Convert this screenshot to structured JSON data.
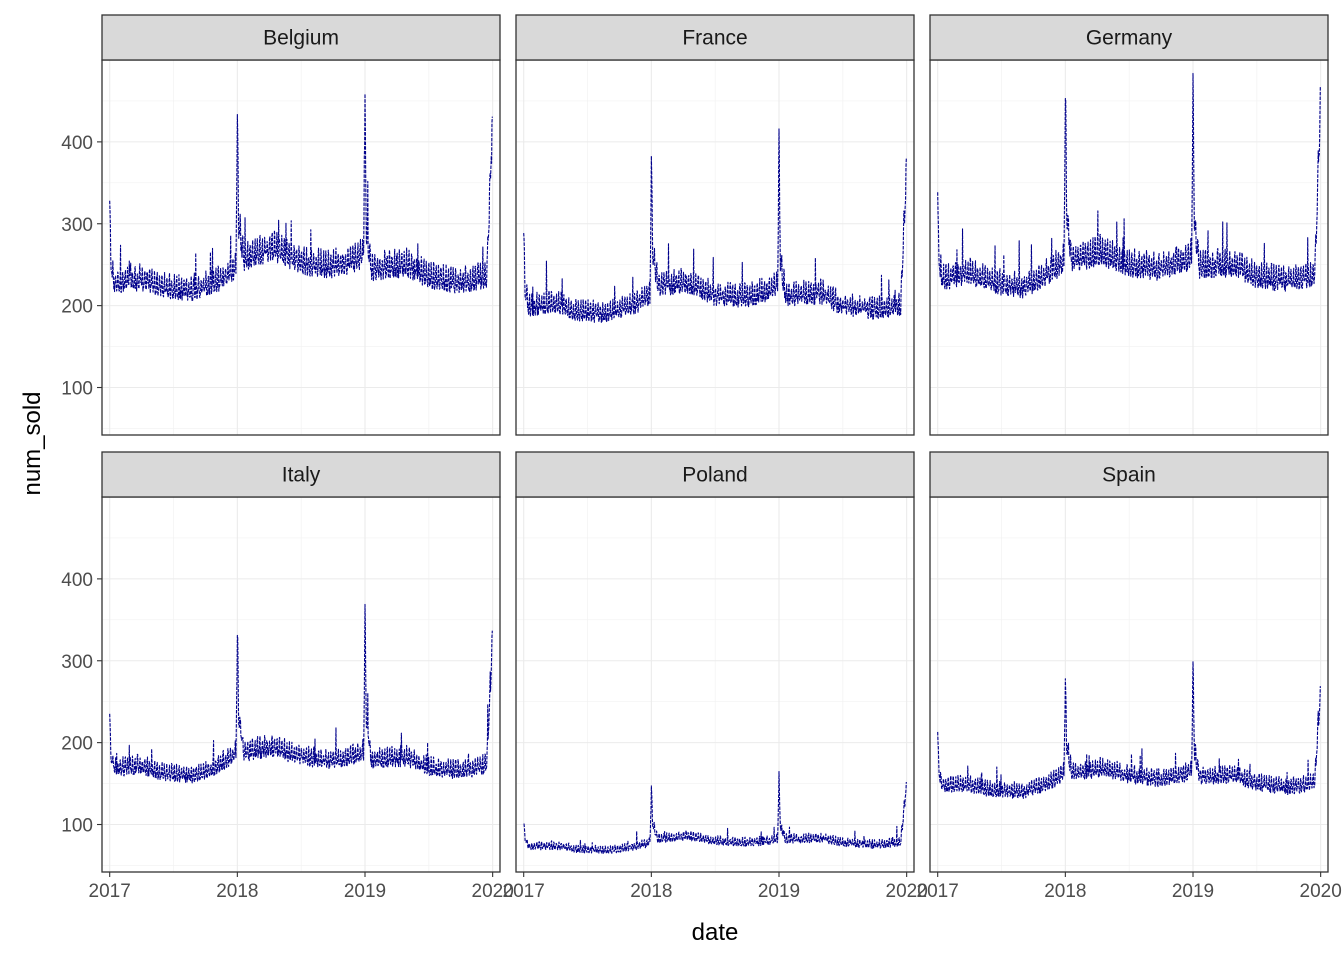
{
  "chart_data": {
    "type": "line",
    "facet_layout": "2 rows x 3 columns, shared axes",
    "xlabel": "date",
    "ylabel": "num_sold",
    "x_ticks": [
      "2017",
      "2018",
      "2019",
      "2020"
    ],
    "y_ticks": [
      100,
      200,
      300,
      400
    ],
    "xlim": [
      "2016-12-10",
      "2020-01-22"
    ],
    "ylim": [
      42,
      500
    ],
    "grid": true,
    "theme": "bw",
    "line_color": "#00008B",
    "line_style": "dashed",
    "strip_fill": "#D9D9D9",
    "panels": [
      {
        "name": "Belgium",
        "anchors": [
          [
            "2017-01-01",
            335
          ],
          [
            "2017-01-04",
            250
          ],
          [
            "2017-01-15",
            225
          ],
          [
            "2017-04-01",
            232
          ],
          [
            "2017-06-01",
            222
          ],
          [
            "2017-09-01",
            218
          ],
          [
            "2017-11-01",
            228
          ],
          [
            "2017-12-15",
            242
          ],
          [
            "2017-12-28",
            250
          ],
          [
            "2018-01-01",
            435
          ],
          [
            "2018-01-05",
            300
          ],
          [
            "2018-01-20",
            258
          ],
          [
            "2018-04-15",
            270
          ],
          [
            "2018-07-01",
            252
          ],
          [
            "2018-10-01",
            248
          ],
          [
            "2018-12-15",
            258
          ],
          [
            "2018-12-28",
            265
          ],
          [
            "2019-01-01",
            440
          ],
          [
            "2019-01-05",
            290
          ],
          [
            "2019-01-20",
            245
          ],
          [
            "2019-05-01",
            250
          ],
          [
            "2019-07-01",
            235
          ],
          [
            "2019-10-01",
            228
          ],
          [
            "2019-12-15",
            235
          ],
          [
            "2019-12-31",
            420
          ]
        ]
      },
      {
        "name": "France",
        "anchors": [
          [
            "2017-01-01",
            293
          ],
          [
            "2017-01-04",
            225
          ],
          [
            "2017-01-15",
            198
          ],
          [
            "2017-04-01",
            203
          ],
          [
            "2017-06-01",
            192
          ],
          [
            "2017-09-01",
            190
          ],
          [
            "2017-11-01",
            200
          ],
          [
            "2017-12-15",
            208
          ],
          [
            "2017-12-28",
            215
          ],
          [
            "2018-01-01",
            378
          ],
          [
            "2018-01-05",
            265
          ],
          [
            "2018-01-20",
            225
          ],
          [
            "2018-04-15",
            228
          ],
          [
            "2018-07-01",
            212
          ],
          [
            "2018-10-01",
            210
          ],
          [
            "2018-12-15",
            220
          ],
          [
            "2018-12-28",
            225
          ],
          [
            "2019-01-01",
            393
          ],
          [
            "2019-01-05",
            255
          ],
          [
            "2019-01-20",
            212
          ],
          [
            "2019-05-01",
            215
          ],
          [
            "2019-07-01",
            200
          ],
          [
            "2019-10-01",
            195
          ],
          [
            "2019-12-15",
            200
          ],
          [
            "2019-12-31",
            365
          ]
        ]
      },
      {
        "name": "Germany",
        "anchors": [
          [
            "2017-01-01",
            340
          ],
          [
            "2017-01-04",
            255
          ],
          [
            "2017-01-15",
            232
          ],
          [
            "2017-04-01",
            240
          ],
          [
            "2017-06-01",
            228
          ],
          [
            "2017-09-01",
            222
          ],
          [
            "2017-11-01",
            235
          ],
          [
            "2017-12-15",
            250
          ],
          [
            "2017-12-28",
            258
          ],
          [
            "2018-01-01",
            457
          ],
          [
            "2018-01-05",
            310
          ],
          [
            "2018-01-20",
            255
          ],
          [
            "2018-04-15",
            265
          ],
          [
            "2018-07-01",
            250
          ],
          [
            "2018-10-01",
            245
          ],
          [
            "2018-12-15",
            255
          ],
          [
            "2018-12-28",
            262
          ],
          [
            "2019-01-01",
            470
          ],
          [
            "2019-01-05",
            300
          ],
          [
            "2019-01-20",
            248
          ],
          [
            "2019-05-01",
            250
          ],
          [
            "2019-07-01",
            235
          ],
          [
            "2019-10-01",
            230
          ],
          [
            "2019-12-15",
            238
          ],
          [
            "2019-12-31",
            440
          ]
        ]
      },
      {
        "name": "Italy",
        "anchors": [
          [
            "2017-01-01",
            240
          ],
          [
            "2017-01-04",
            185
          ],
          [
            "2017-01-15",
            168
          ],
          [
            "2017-04-01",
            172
          ],
          [
            "2017-06-01",
            163
          ],
          [
            "2017-09-01",
            160
          ],
          [
            "2017-11-01",
            170
          ],
          [
            "2017-12-15",
            182
          ],
          [
            "2017-12-28",
            188
          ],
          [
            "2018-01-01",
            330
          ],
          [
            "2018-01-05",
            230
          ],
          [
            "2018-01-20",
            188
          ],
          [
            "2018-04-15",
            195
          ],
          [
            "2018-07-01",
            182
          ],
          [
            "2018-10-01",
            178
          ],
          [
            "2018-12-15",
            185
          ],
          [
            "2018-12-28",
            190
          ],
          [
            "2019-01-01",
            348
          ],
          [
            "2019-01-05",
            225
          ],
          [
            "2019-01-20",
            178
          ],
          [
            "2019-05-01",
            182
          ],
          [
            "2019-07-01",
            170
          ],
          [
            "2019-10-01",
            165
          ],
          [
            "2019-12-15",
            172
          ],
          [
            "2019-12-31",
            325
          ]
        ]
      },
      {
        "name": "Poland",
        "anchors": [
          [
            "2017-01-01",
            105
          ],
          [
            "2017-01-04",
            85
          ],
          [
            "2017-01-15",
            73
          ],
          [
            "2017-04-01",
            74
          ],
          [
            "2017-06-01",
            70
          ],
          [
            "2017-09-01",
            68
          ],
          [
            "2017-11-01",
            72
          ],
          [
            "2017-12-15",
            76
          ],
          [
            "2017-12-28",
            80
          ],
          [
            "2018-01-01",
            143
          ],
          [
            "2018-01-05",
            100
          ],
          [
            "2018-01-20",
            82
          ],
          [
            "2018-04-15",
            86
          ],
          [
            "2018-07-01",
            80
          ],
          [
            "2018-10-01",
            78
          ],
          [
            "2018-12-15",
            80
          ],
          [
            "2018-12-28",
            83
          ],
          [
            "2019-01-01",
            152
          ],
          [
            "2019-01-05",
            98
          ],
          [
            "2019-01-20",
            82
          ],
          [
            "2019-05-01",
            83
          ],
          [
            "2019-07-01",
            78
          ],
          [
            "2019-10-01",
            75
          ],
          [
            "2019-12-15",
            78
          ],
          [
            "2019-12-31",
            147
          ]
        ]
      },
      {
        "name": "Spain",
        "anchors": [
          [
            "2017-01-01",
            215
          ],
          [
            "2017-01-04",
            165
          ],
          [
            "2017-01-15",
            148
          ],
          [
            "2017-04-01",
            148
          ],
          [
            "2017-06-01",
            142
          ],
          [
            "2017-09-01",
            140
          ],
          [
            "2017-11-01",
            148
          ],
          [
            "2017-12-15",
            158
          ],
          [
            "2017-12-28",
            165
          ],
          [
            "2018-01-01",
            275
          ],
          [
            "2018-01-05",
            195
          ],
          [
            "2018-01-20",
            162
          ],
          [
            "2018-04-15",
            168
          ],
          [
            "2018-07-01",
            160
          ],
          [
            "2018-10-01",
            155
          ],
          [
            "2018-12-15",
            162
          ],
          [
            "2018-12-28",
            168
          ],
          [
            "2019-01-01",
            288
          ],
          [
            "2019-01-05",
            190
          ],
          [
            "2019-01-20",
            158
          ],
          [
            "2019-05-01",
            160
          ],
          [
            "2019-07-01",
            150
          ],
          [
            "2019-10-01",
            145
          ],
          [
            "2019-12-15",
            150
          ],
          [
            "2019-12-31",
            262
          ]
        ]
      }
    ]
  }
}
